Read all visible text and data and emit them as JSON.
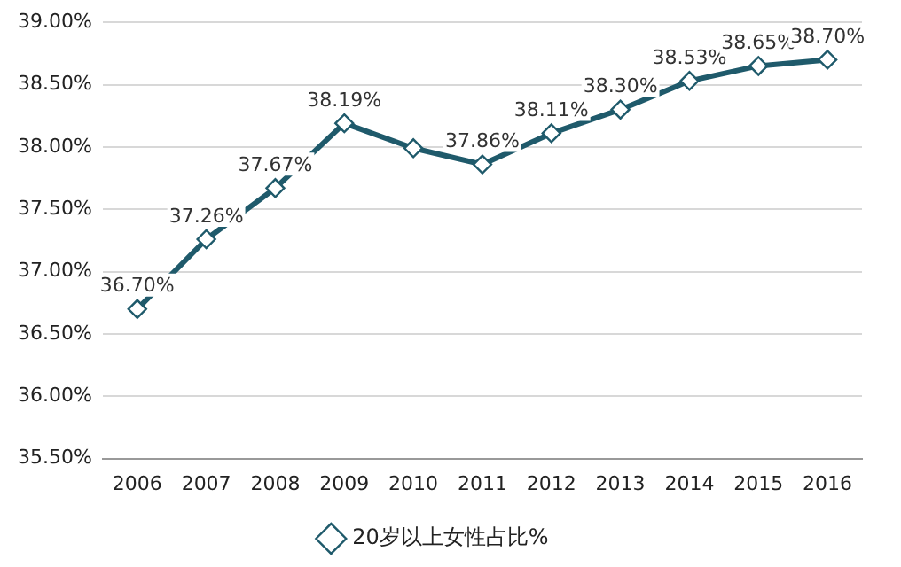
{
  "chart_data": {
    "type": "line",
    "categories": [
      "2006",
      "2007",
      "2008",
      "2009",
      "2010",
      "2011",
      "2012",
      "2013",
      "2014",
      "2015",
      "2016"
    ],
    "series": [
      {
        "name": "20岁以上女性占比%",
        "color": "#1f5a6b",
        "values": [
          36.7,
          37.26,
          37.67,
          38.19,
          37.99,
          37.86,
          38.11,
          38.3,
          38.53,
          38.65,
          38.7
        ],
        "value_labels": [
          "36.70%",
          "37.26%",
          "37.67%",
          "38.19%",
          null,
          "37.86%",
          "38.11%",
          "38.30%",
          "38.53%",
          "38.65%",
          "38.70%"
        ]
      }
    ],
    "ylim": [
      35.5,
      39.0
    ],
    "yticks": [
      {
        "value": 35.5,
        "label": "35.50%"
      },
      {
        "value": 36.0,
        "label": "36.00%"
      },
      {
        "value": 36.5,
        "label": "36.50%"
      },
      {
        "value": 37.0,
        "label": "37.00%"
      },
      {
        "value": 37.5,
        "label": "37.50%"
      },
      {
        "value": 38.0,
        "label": "38.00%"
      },
      {
        "value": 38.5,
        "label": "38.50%"
      },
      {
        "value": 39.0,
        "label": "39.00%"
      }
    ],
    "grid": "y",
    "legend": "bottom",
    "marker": "diamond",
    "line_style": "solid"
  }
}
